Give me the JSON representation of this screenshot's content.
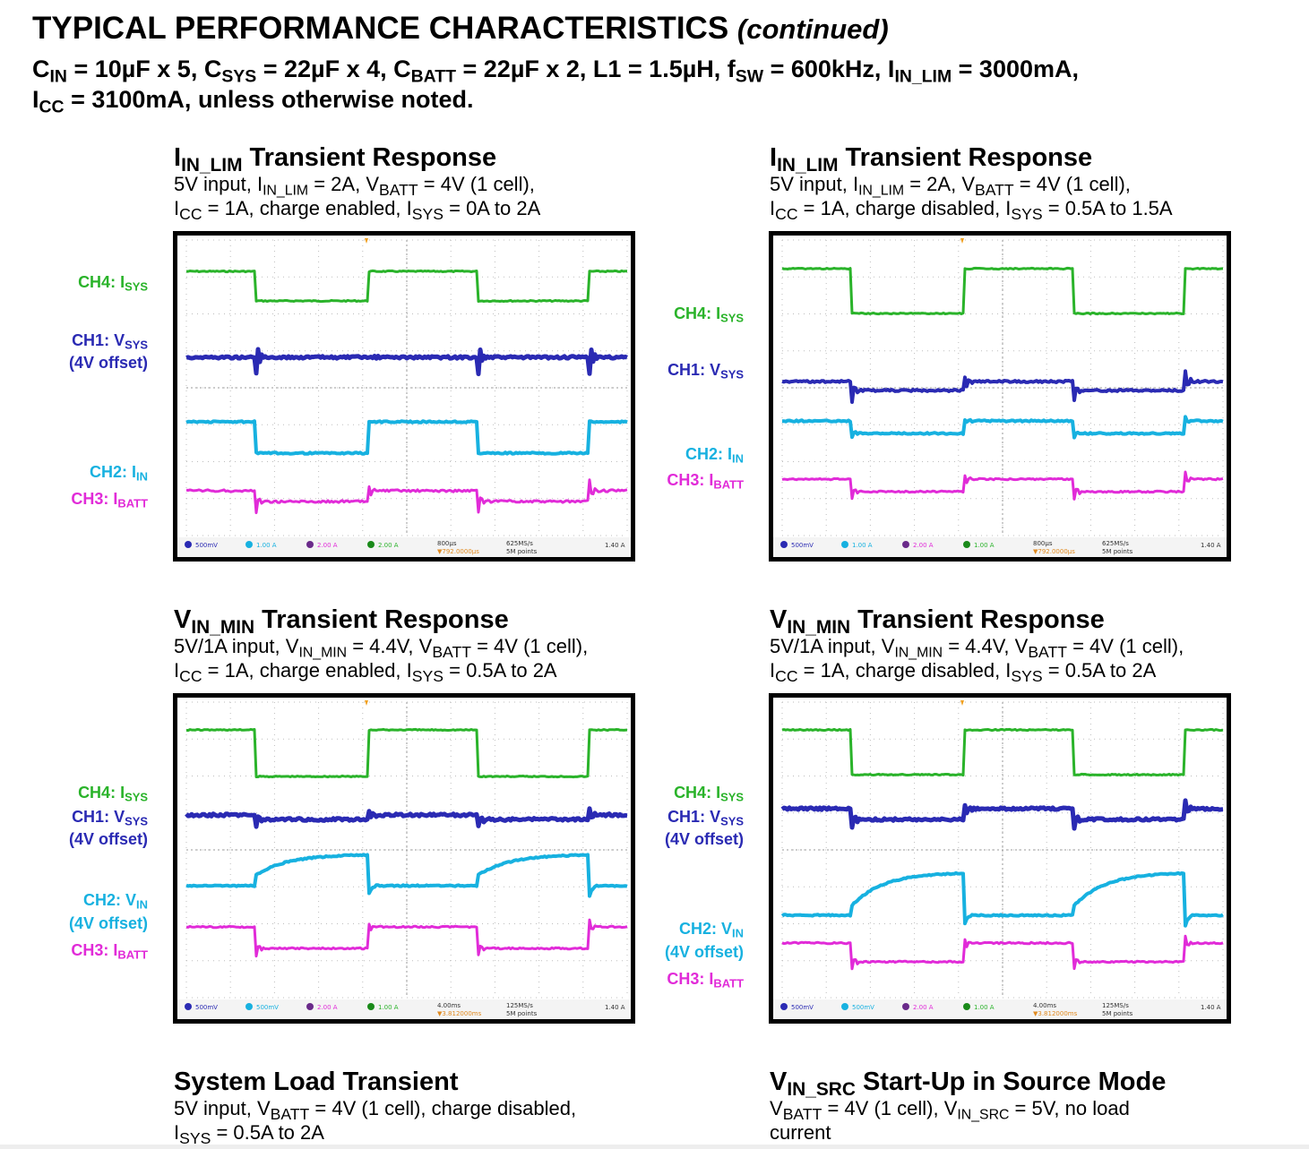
{
  "header": {
    "title": "TYPICAL PERFORMANCE CHARACTERISTICS",
    "title_suffix": "(continued)"
  },
  "conditions": {
    "cin_label": "C",
    "cin_sub": "IN",
    "cin_val": " = 10µF x 5, ",
    "csys_label": "C",
    "csys_sub": "SYS",
    "csys_val": " = 22µF x 4, ",
    "cbatt_label": "C",
    "cbatt_sub": "BATT",
    "cbatt_val": " = 22µF x 2, L1 = 1.5µH, f",
    "fsw_sub": "SW",
    "fsw_val": " = 600kHz, I",
    "ilim_sub": "IN_LIM",
    "ilim_val": " = 3000mA,",
    "icc_label": "I",
    "icc_sub": "CC",
    "icc_val": " = 3100mA, unless otherwise noted."
  },
  "panels": [
    {
      "title_prefix": "I",
      "title_sub": "IN_LIM",
      "title_rest": " Transient Response",
      "line1": "5V input, I<sub>IN_LIM</sub> = 2A, V<sub class=\"smc\">BATT</sub> = 4V (1 cell),",
      "line2": "I<sub class=\"smc\">CC</sub> = 1A, charge enabled, I<sub class=\"smc\">SYS</sub> = 0A to 2A",
      "scope_readout": {
        "ch1": "500mV",
        "ch2": "1.00 A",
        "ch3": "2.00 A",
        "ch4": "2.00 A",
        "time": "800µs",
        "delay": "▼792.0000µs",
        "rate": "625MS/s",
        "points": "5M points",
        "trig": "1.40 A"
      },
      "labels": [
        {
          "text": "CH4: I",
          "sub": "SYS",
          "color": "green"
        },
        {
          "text": "CH1: V",
          "sub": "SYS",
          "color": "blue"
        },
        {
          "text": "(4V offset)",
          "sub": "",
          "color": "blue"
        },
        {
          "text": "CH2: I",
          "sub": "IN",
          "color": "cyan"
        },
        {
          "text": "CH3: I",
          "sub": "BATT",
          "color": "mag"
        }
      ]
    },
    {
      "title_prefix": "I",
      "title_sub": "IN_LIM",
      "title_rest": " Transient Response",
      "line1": "5V input, I<sub>IN_LIM</sub> = 2A, V<sub class=\"smc\">BATT</sub> = 4V (1 cell),",
      "line2": "I<sub class=\"smc\">CC</sub> = 1A, charge disabled, I<sub class=\"smc\">SYS</sub> = 0.5A to 1.5A",
      "scope_readout": {
        "ch1": "500mV",
        "ch2": "1.00 A",
        "ch3": "2.00 A",
        "ch4": "1.00 A",
        "time": "800µs",
        "delay": "▼792.0000µs",
        "rate": "625MS/s",
        "points": "5M points",
        "trig": "1.40 A"
      },
      "labels": [
        {
          "text": "CH4: I",
          "sub": "SYS",
          "color": "green"
        },
        {
          "text": "CH1: V",
          "sub": "SYS",
          "color": "blue"
        },
        {
          "text": "CH2: I",
          "sub": "IN",
          "color": "cyan"
        },
        {
          "text": "CH3: I",
          "sub": "BATT",
          "color": "mag"
        }
      ]
    },
    {
      "title_prefix": "V",
      "title_sub": "IN_MIN",
      "title_rest": " Transient Response",
      "line1": "5V/1A input, V<sub>IN_MIN</sub> = 4.4V, V<sub class=\"smc\">BATT</sub> = 4V (1 cell),",
      "line2": "I<sub class=\"smc\">CC</sub> = 1A, charge enabled, I<sub class=\"smc\">SYS</sub> = 0.5A to 2A",
      "scope_readout": {
        "ch1": "500mV",
        "ch2": "500mV",
        "ch3": "2.00 A",
        "ch4": "1.00 A",
        "time": "4.00ms",
        "delay": "▼3.812000ms",
        "rate": "125MS/s",
        "points": "5M points",
        "trig": "1.40 A"
      },
      "labels": [
        {
          "text": "CH4: I",
          "sub": "SYS",
          "color": "green"
        },
        {
          "text": "CH1: V",
          "sub": "SYS",
          "color": "blue"
        },
        {
          "text": "(4V offset)",
          "sub": "",
          "color": "blue"
        },
        {
          "text": "CH2: V",
          "sub": "IN",
          "color": "cyan"
        },
        {
          "text": "(4V offset)",
          "sub": "",
          "color": "cyan"
        },
        {
          "text": "CH3: I",
          "sub": "BATT",
          "color": "mag"
        }
      ]
    },
    {
      "title_prefix": "V",
      "title_sub": "IN_MIN",
      "title_rest": " Transient Response",
      "line1": "5V/1A input, V<sub>IN_MIN</sub> = 4.4V, V<sub class=\"smc\">BATT</sub> = 4V (1 cell),",
      "line2": "I<sub class=\"smc\">CC</sub> = 1A, charge disabled, I<sub class=\"smc\">SYS</sub> = 0.5A to 2A",
      "scope_readout": {
        "ch1": "500mV",
        "ch2": "500mV",
        "ch3": "2.00 A",
        "ch4": "1.00 A",
        "time": "4.00ms",
        "delay": "▼3.812000ms",
        "rate": "125MS/s",
        "points": "5M points",
        "trig": "1.40 A"
      },
      "labels": [
        {
          "text": "CH4: I",
          "sub": "SYS",
          "color": "green"
        },
        {
          "text": "CH1: V",
          "sub": "SYS",
          "color": "blue"
        },
        {
          "text": "(4V offset)",
          "sub": "",
          "color": "blue"
        },
        {
          "text": "CH2: V",
          "sub": "IN",
          "color": "cyan"
        },
        {
          "text": "(4V offset)",
          "sub": "",
          "color": "cyan"
        },
        {
          "text": "CH3: I",
          "sub": "BATT",
          "color": "mag"
        }
      ]
    },
    {
      "title_prefix": "",
      "title_sub": "",
      "title_rest": "System Load Transient",
      "line1": "5V input, V<sub class=\"smc\">BATT</sub> = 4V (1 cell), charge disabled,",
      "line2": "I<sub class=\"smc\">SYS</sub> = 0.5A to 2A",
      "labels": []
    },
    {
      "title_prefix": "V",
      "title_sub": "IN_SRC",
      "title_rest": " Start-Up in Source Mode",
      "line1": "V<sub class=\"smc\">BATT</sub> = 4V (1 cell), V<sub>IN_SRC</sub> = 5V, no load",
      "line2": "current",
      "labels": []
    }
  ],
  "colors": {
    "green": "#2ab32a",
    "blue": "#2a2ab3",
    "cyan": "#17b1e0",
    "mag": "#e12bd8"
  }
}
